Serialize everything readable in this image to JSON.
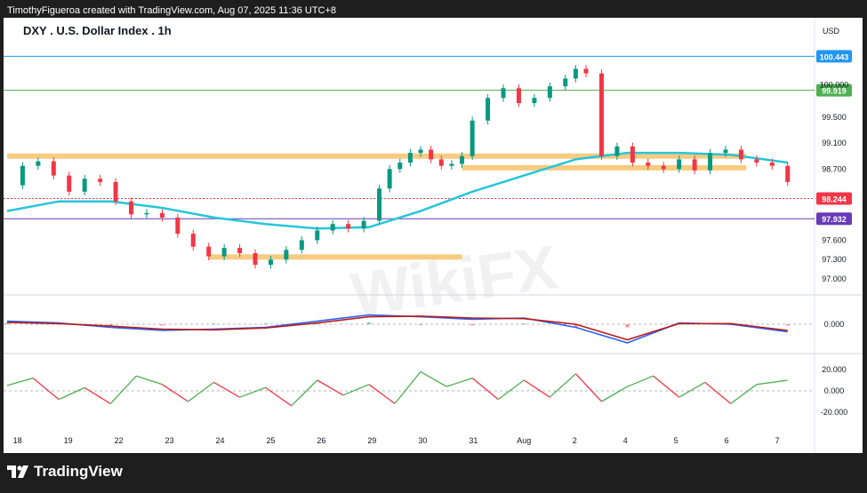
{
  "header": {
    "credit": "TimothyFigueroa created with TradingView.com, Aug 07, 2025 11:36 UTC+8"
  },
  "footer": {
    "brand": "TradingView"
  },
  "watermark": {
    "text": "WikiFX"
  },
  "chart_data": {
    "type": "line",
    "title": "DXY . U.S. Dollar Index . 1h",
    "currency": "USD",
    "x_ticks": [
      "18",
      "19",
      "22",
      "23",
      "24",
      "25",
      "26",
      "29",
      "30",
      "31",
      "Aug",
      "2",
      "4",
      "5",
      "6",
      "7"
    ],
    "price_axis": {
      "ticks": [
        "100.000",
        "99.500",
        "99.100",
        "98.700",
        "97.600",
        "97.300",
        "97.000"
      ],
      "ylim": [
        96.85,
        100.6
      ]
    },
    "price_labels": [
      {
        "value": 100.443,
        "text": "100.443",
        "color": "#2196f3"
      },
      {
        "value": 99.919,
        "text": "99.919",
        "color": "#4caf50"
      },
      {
        "value": 98.244,
        "text": "98.244",
        "color": "#f23645"
      },
      {
        "value": 97.932,
        "text": "97.932",
        "color": "#673ab7"
      }
    ],
    "support_resistance_zones": [
      {
        "from_x": 0,
        "to_x": 14.3,
        "value": 98.9
      },
      {
        "from_x": 8.8,
        "to_x": 14.3,
        "value": 98.72
      },
      {
        "from_x": 3.9,
        "to_x": 8.8,
        "value": 97.34
      }
    ],
    "price_series": {
      "name": "DXY",
      "x": [
        0,
        0.3,
        0.6,
        0.9,
        1.2,
        1.5,
        1.8,
        2.1,
        2.4,
        2.7,
        3.0,
        3.3,
        3.6,
        3.9,
        4.2,
        4.5,
        4.8,
        5.1,
        5.4,
        5.7,
        6.0,
        6.3,
        6.6,
        6.9,
        7.2,
        7.4,
        7.6,
        7.8,
        8.0,
        8.2,
        8.4,
        8.6,
        8.8,
        9.0,
        9.3,
        9.6,
        9.9,
        10.2,
        10.5,
        10.8,
        11.0,
        11.2,
        11.5,
        11.8,
        12.1,
        12.4,
        12.7,
        13.0,
        13.3,
        13.6,
        13.9,
        14.2,
        14.5,
        14.8,
        15.1
      ],
      "close": [
        98.45,
        98.75,
        98.82,
        98.6,
        98.35,
        98.55,
        98.5,
        98.2,
        98.0,
        98.02,
        97.95,
        97.7,
        97.5,
        97.35,
        97.48,
        97.4,
        97.22,
        97.3,
        97.45,
        97.6,
        97.75,
        97.85,
        97.78,
        97.9,
        98.4,
        98.7,
        98.8,
        98.95,
        99.0,
        98.85,
        98.75,
        98.78,
        98.9,
        99.45,
        99.8,
        99.95,
        99.72,
        99.8,
        99.98,
        100.1,
        100.25,
        100.18,
        98.9,
        99.05,
        98.8,
        98.75,
        98.7,
        98.85,
        98.68,
        98.95,
        99.0,
        98.85,
        98.8,
        98.75,
        98.5
      ]
    },
    "moving_average": {
      "name": "MA",
      "x": [
        0,
        1,
        2,
        3,
        4,
        5,
        6,
        7,
        8,
        9,
        10,
        11,
        12,
        13,
        14,
        15.1
      ],
      "values": [
        98.05,
        98.2,
        98.2,
        98.1,
        97.95,
        97.85,
        97.78,
        97.8,
        98.05,
        98.35,
        98.6,
        98.85,
        98.95,
        98.95,
        98.92,
        98.8
      ]
    },
    "macd": {
      "zero_label": "0.000",
      "x": [
        0,
        1,
        2,
        3,
        4,
        5,
        6,
        7,
        8,
        9,
        10,
        11,
        12,
        13,
        14,
        15.1
      ],
      "macd": [
        0.05,
        0.02,
        -0.05,
        -0.1,
        -0.08,
        -0.05,
        0.05,
        0.15,
        0.12,
        0.08,
        0.1,
        -0.05,
        -0.3,
        0.02,
        0.0,
        -0.12
      ],
      "signal": [
        0.03,
        0.01,
        -0.03,
        -0.08,
        -0.09,
        -0.06,
        0.02,
        0.12,
        0.13,
        0.1,
        0.09,
        0.0,
        -0.25,
        0.01,
        0.01,
        -0.1
      ]
    },
    "rsi": {
      "axis_labels": [
        "20.000",
        "0.000",
        "-20.000"
      ],
      "x": [
        0,
        0.5,
        1,
        1.5,
        2,
        2.5,
        3,
        3.5,
        4,
        4.5,
        5,
        5.5,
        6,
        6.5,
        7,
        7.5,
        8,
        8.5,
        9,
        9.5,
        10,
        10.5,
        11,
        11.5,
        12,
        12.5,
        13,
        13.5,
        14,
        14.5,
        15.1
      ],
      "values": [
        5,
        12,
        -8,
        3,
        -12,
        14,
        6,
        -10,
        8,
        -6,
        3,
        -14,
        10,
        -4,
        6,
        -12,
        18,
        4,
        12,
        -8,
        10,
        -6,
        16,
        -10,
        4,
        14,
        -6,
        8,
        -12,
        6,
        10
      ]
    }
  }
}
